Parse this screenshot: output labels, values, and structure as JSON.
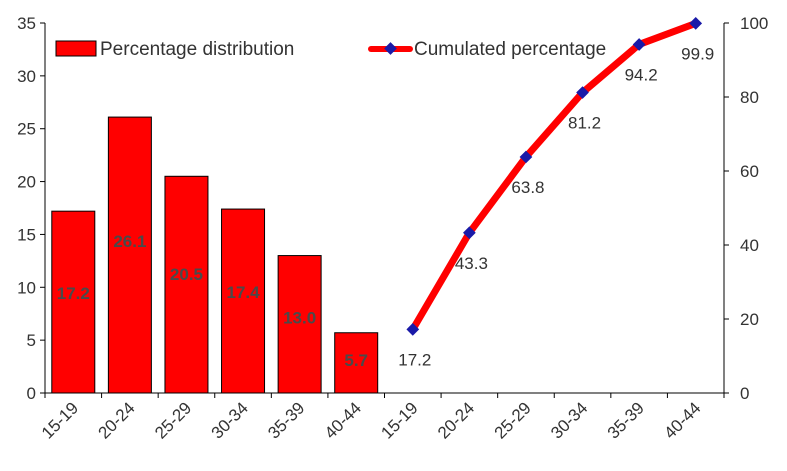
{
  "chart_data": {
    "type": "bar+line",
    "categories": [
      "15-19",
      "20-24",
      "25-29",
      "30-34",
      "35-39",
      "40-44"
    ],
    "series": [
      {
        "name": "Percentage distribution",
        "type": "bar",
        "axis": "left",
        "color": "#ff0000",
        "values": [
          17.2,
          26.1,
          20.5,
          17.4,
          13.0,
          5.7
        ],
        "labels": [
          "17.2",
          "26.1",
          "20.5",
          "17.4",
          "13.0",
          "5.7"
        ]
      },
      {
        "name": "Cumulated percentage",
        "type": "line",
        "axis": "right",
        "color": "#ff0000",
        "marker_color": "#1a1aa8",
        "values": [
          17.2,
          43.3,
          63.8,
          81.2,
          94.2,
          99.9
        ],
        "labels": [
          "17.2",
          "43.3",
          "63.8",
          "81.2",
          "94.2",
          "99.9"
        ]
      }
    ],
    "y_left": {
      "min": 0,
      "max": 35,
      "ticks": [
        "0",
        "5",
        "10",
        "15",
        "20",
        "25",
        "30",
        "35"
      ]
    },
    "y_right": {
      "min": 0,
      "max": 100,
      "ticks": [
        "0",
        "20",
        "40",
        "60",
        "80",
        "100"
      ]
    },
    "x_ticks": [
      "15-19",
      "20-24",
      "25-29",
      "30-34",
      "35-39",
      "40-44",
      "15-19",
      "20-24",
      "25-29",
      "30-34",
      "35-39",
      "40-44"
    ],
    "legend": {
      "placement": "top"
    },
    "grid": false
  }
}
